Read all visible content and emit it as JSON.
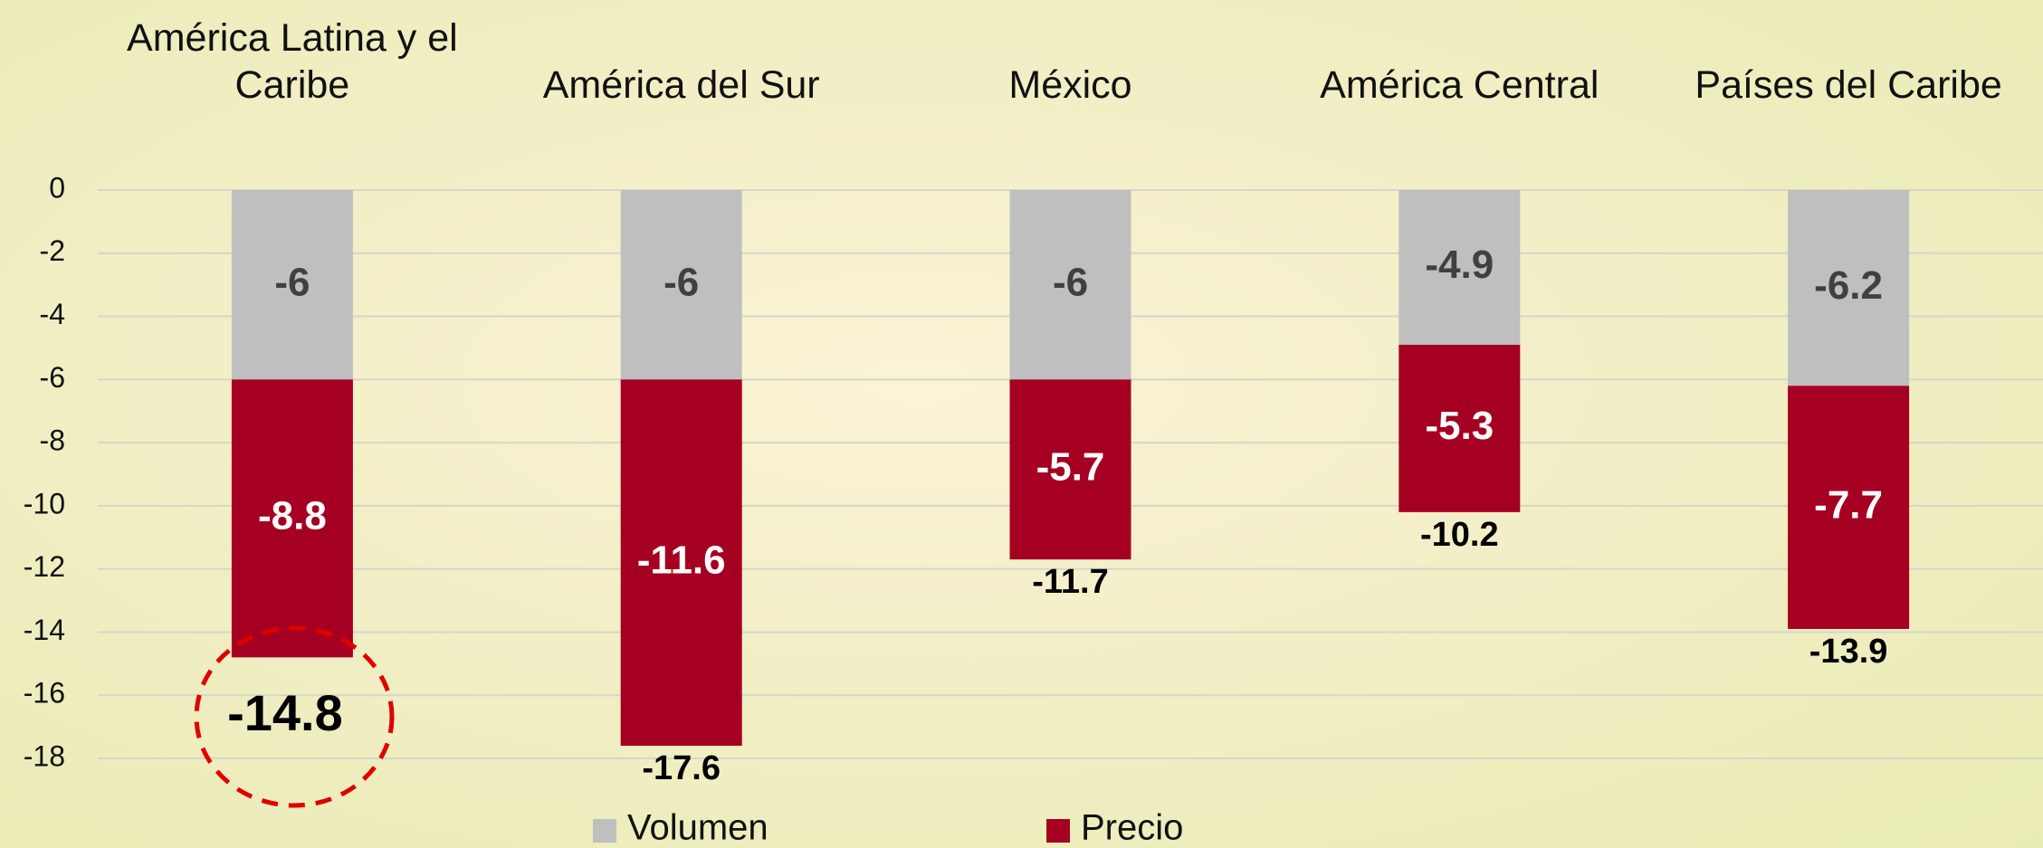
{
  "chart_data": {
    "type": "stacked-bar",
    "categories": [
      "América Latina y el Caribe",
      "América del Sur",
      "México",
      "América Central",
      "Países del Caribe"
    ],
    "series": [
      {
        "name": "Volumen",
        "color": "#bfbfbf",
        "values": [
          -6,
          -6,
          -6,
          -4.9,
          -6.2
        ]
      },
      {
        "name": "Precio",
        "color": "#a50021",
        "values": [
          -8.8,
          -11.6,
          -5.7,
          -5.3,
          -7.7
        ]
      }
    ],
    "totals": [
      -14.8,
      -17.6,
      -11.7,
      -10.2,
      -13.9
    ],
    "ylim": [
      -18,
      0
    ],
    "yticks": [
      0,
      -2,
      -4,
      -6,
      -8,
      -10,
      -12,
      -14,
      -16,
      -18
    ],
    "grid": true
  }
}
